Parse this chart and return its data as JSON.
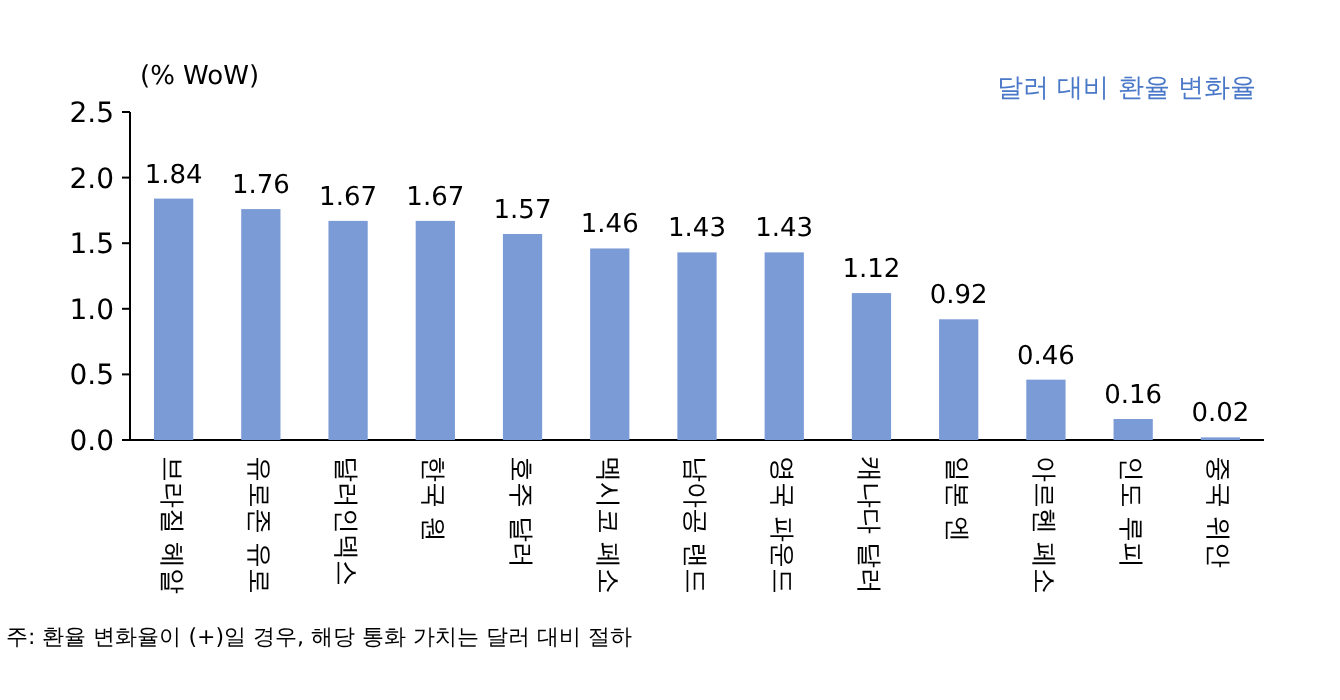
{
  "chart_data": {
    "type": "bar",
    "ylabel": "(% WoW)",
    "categories": [
      "브라질 헤알",
      "유로존 유로",
      "달러인덱스",
      "한국 원",
      "호주 달러",
      "멕시코 페소",
      "남아공 랜드",
      "영국 파운드",
      "캐나다 달러",
      "일본 엔",
      "아르헨 페소",
      "인도 루피",
      "중국 위안"
    ],
    "series": [
      {
        "name": "달러 대비 환율 변화율",
        "color": "#7b9bd6",
        "values": [
          1.84,
          1.76,
          1.67,
          1.67,
          1.57,
          1.46,
          1.43,
          1.43,
          1.12,
          0.92,
          0.46,
          0.16,
          0.02
        ]
      }
    ],
    "ylim": [
      0,
      2.5
    ],
    "yticks": [
      {
        "value": 0,
        "label": "0.0"
      },
      {
        "value": 0.5,
        "label": "0.5"
      },
      {
        "value": 1,
        "label": "1.0"
      },
      {
        "value": 1.5,
        "label": "1.5"
      },
      {
        "value": 2,
        "label": "2.0"
      },
      {
        "value": 2.5,
        "label": "2.5"
      }
    ],
    "data_labels": true,
    "grid": false,
    "legend": "top right",
    "annotations": [
      "주: 환율 변화율이 (+)일 경우, 해당 통화 가치는 달러 대비 절하"
    ]
  }
}
